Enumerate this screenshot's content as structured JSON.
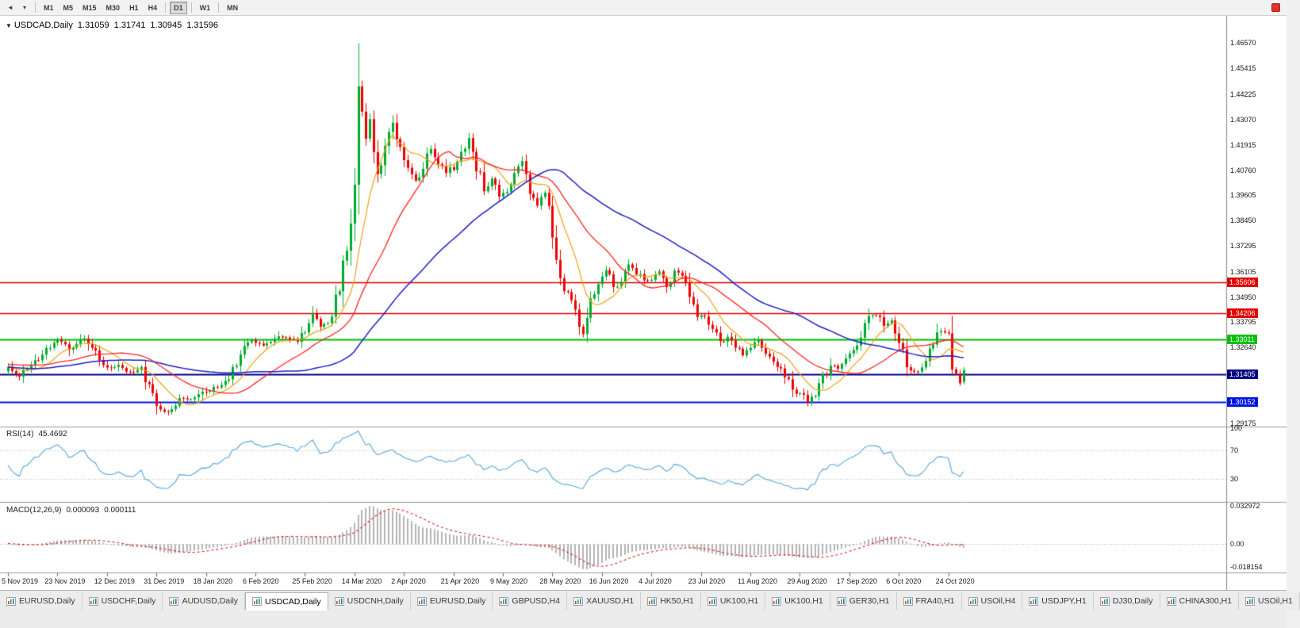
{
  "icons": {
    "title_marker": "▼",
    "dropdown": "▾",
    "scroll_left": "◄"
  },
  "toolbar": {
    "periods": [
      "M1",
      "M5",
      "M15",
      "M30",
      "H1",
      "H4",
      "D1",
      "W1",
      "MN"
    ],
    "active_period": "D1",
    "separators_after": [
      "H4",
      "D1",
      "W1"
    ]
  },
  "chart_header": {
    "symbol": "USDCAD,Daily",
    "open": "1.31059",
    "high": "1.31741",
    "low": "1.30945",
    "close": "1.31596"
  },
  "price_axis_labels": [
    "1.46570",
    "1.45415",
    "1.44225",
    "1.43070",
    "1.41915",
    "1.40760",
    "1.39605",
    "1.38450",
    "1.37295",
    "1.36105",
    "1.34950",
    "1.33795",
    "1.32640",
    "1.29175"
  ],
  "levels": [
    {
      "price": 1.35606,
      "label": "1.35606",
      "color": "#e00000",
      "line_width": 1.4
    },
    {
      "price": 1.34206,
      "label": "1.34206",
      "color": "#e00000",
      "line_width": 1.4
    },
    {
      "price": 1.33011,
      "label": "1.33011",
      "color": "#00c000",
      "line_width": 2
    },
    {
      "price": 1.31405,
      "label": "1.31405",
      "color": "#000085",
      "line_width": 2
    },
    {
      "price": 1.30152,
      "label": "1.30152",
      "color": "#0014e0",
      "line_width": 2
    }
  ],
  "rsi_panel": {
    "name": "RSI(14)",
    "value": "45.4692",
    "axis_labels": [
      "100",
      "70",
      "30"
    ],
    "level_lines": [
      70,
      30
    ]
  },
  "macd_panel": {
    "name": "MACD(12,26,9)",
    "value_main": "0.000093",
    "value_signal": "0.000111",
    "axis_top": "0.032972",
    "axis_zero": "0.00",
    "axis_bottom": "-0.018154"
  },
  "date_labels": [
    "5 Nov 2019",
    "23 Nov 2019",
    "12 Dec 2019",
    "31 Dec 2019",
    "18 Jan 2020",
    "6 Feb 2020",
    "25 Feb 2020",
    "14 Mar 2020",
    "2 Apr 2020",
    "21 Apr 2020",
    "9 May 2020",
    "28 May 2020",
    "16 Jun 2020",
    "4 Jul 2020",
    "23 Jul 2020",
    "11 Aug 2020",
    "29 Aug 2020",
    "17 Sep 2020",
    "6 Oct 2020",
    "24 Oct 2020"
  ],
  "tabs": [
    "EURUSD,Daily",
    "USDCHF,Daily",
    "AUDUSD,Daily",
    "USDCAD,Daily",
    "USDCNH,Daily",
    "EURUSD,Daily",
    "GBPUSD,H4",
    "XAUUSD,H1",
    "HK50,H1",
    "UK100,H1",
    "UK100,H1",
    "GER30,H1",
    "FRA40,H1",
    "USOil,H4",
    "USDJPY,H1",
    "DJ30,Daily",
    "CHINA300,H1",
    "USOil,H1"
  ],
  "active_tab": 3,
  "chart_data": {
    "type": "candlestick",
    "symbol": "USDCAD",
    "timeframe": "D1",
    "candle_count": 252,
    "date_tick_step": 13,
    "price_scale": {
      "top": 1.4775,
      "bottom": 1.2905
    },
    "last_candle": {
      "open": 1.31059,
      "high": 1.31741,
      "low": 1.30945,
      "close": 1.31596
    },
    "colors": {
      "up": "#00ad2e",
      "down": "#f20000",
      "ma_fast": "#eda313",
      "ma_mid": "#ff2222",
      "ma_slow": "#1f1fc8",
      "rsi": "#58a5da",
      "rsi_grid": "#bdbdbd",
      "macd_hist": "#b4b4b4",
      "macd_signal": "#e02020",
      "axis_line": "#8a8a8a",
      "divider": "#9a9a9a"
    },
    "moving_averages": [
      {
        "period": 10,
        "role": "fast"
      },
      {
        "period": 25,
        "role": "mid"
      },
      {
        "period": 55,
        "role": "slow"
      }
    ],
    "indicators": {
      "rsi_period": 14,
      "macd": [
        12,
        26,
        9
      ]
    },
    "close_anchors": [
      [
        0,
        1.317
      ],
      [
        3,
        1.3135
      ],
      [
        6,
        1.318
      ],
      [
        9,
        1.3235
      ],
      [
        13,
        1.3295
      ],
      [
        16,
        1.326
      ],
      [
        20,
        1.33
      ],
      [
        23,
        1.3245
      ],
      [
        26,
        1.317
      ],
      [
        29,
        1.3185
      ],
      [
        32,
        1.315
      ],
      [
        35,
        1.317
      ],
      [
        39,
        1.3
      ],
      [
        42,
        1.2962
      ],
      [
        45,
        1.304
      ],
      [
        48,
        1.3022
      ],
      [
        52,
        1.3065
      ],
      [
        55,
        1.309
      ],
      [
        58,
        1.3115
      ],
      [
        61,
        1.3245
      ],
      [
        64,
        1.329
      ],
      [
        67,
        1.327
      ],
      [
        70,
        1.3305
      ],
      [
        73,
        1.3312
      ],
      [
        76,
        1.329
      ],
      [
        78,
        1.335
      ],
      [
        80,
        1.3422
      ],
      [
        82,
        1.337
      ],
      [
        84,
        1.3362
      ],
      [
        86,
        1.348
      ],
      [
        88,
        1.362
      ],
      [
        90,
        1.386
      ],
      [
        91,
        1.412
      ],
      [
        92,
        1.448
      ],
      [
        93,
        1.435
      ],
      [
        94,
        1.423
      ],
      [
        95,
        1.4285
      ],
      [
        96,
        1.414
      ],
      [
        97,
        1.406
      ],
      [
        99,
        1.418
      ],
      [
        101,
        1.429
      ],
      [
        103,
        1.417
      ],
      [
        105,
        1.41
      ],
      [
        107,
        1.403
      ],
      [
        109,
        1.409
      ],
      [
        111,
        1.417
      ],
      [
        113,
        1.411
      ],
      [
        115,
        1.406
      ],
      [
        117,
        1.4092
      ],
      [
        119,
        1.416
      ],
      [
        121,
        1.422
      ],
      [
        123,
        1.409
      ],
      [
        125,
        1.399
      ],
      [
        127,
        1.403
      ],
      [
        129,
        1.395
      ],
      [
        131,
        1.3992
      ],
      [
        133,
        1.407
      ],
      [
        135,
        1.4112
      ],
      [
        137,
        1.399
      ],
      [
        139,
        1.3912
      ],
      [
        141,
        1.397
      ],
      [
        143,
        1.377
      ],
      [
        145,
        1.3572
      ],
      [
        147,
        1.351
      ],
      [
        149,
        1.3432
      ],
      [
        151,
        1.333
      ],
      [
        153,
        1.348
      ],
      [
        155,
        1.355
      ],
      [
        157,
        1.362
      ],
      [
        159,
        1.3532
      ],
      [
        161,
        1.3572
      ],
      [
        163,
        1.365
      ],
      [
        165,
        1.36
      ],
      [
        167,
        1.3576
      ],
      [
        169,
        1.3565
      ],
      [
        171,
        1.3605
      ],
      [
        173,
        1.3545
      ],
      [
        175,
        1.361
      ],
      [
        177,
        1.3576
      ],
      [
        179,
        1.3515
      ],
      [
        181,
        1.3415
      ],
      [
        183,
        1.34
      ],
      [
        185,
        1.334
      ],
      [
        187,
        1.3292
      ],
      [
        189,
        1.331
      ],
      [
        191,
        1.327
      ],
      [
        193,
        1.3232
      ],
      [
        195,
        1.3262
      ],
      [
        197,
        1.3295
      ],
      [
        199,
        1.3236
      ],
      [
        201,
        1.3185
      ],
      [
        203,
        1.3165
      ],
      [
        205,
        1.3105
      ],
      [
        207,
        1.3065
      ],
      [
        209,
        1.3035
      ],
      [
        210,
        1.3006
      ],
      [
        212,
        1.306
      ],
      [
        214,
        1.313
      ],
      [
        216,
        1.318
      ],
      [
        218,
        1.3165
      ],
      [
        220,
        1.3205
      ],
      [
        222,
        1.325
      ],
      [
        224,
        1.333
      ],
      [
        226,
        1.3395
      ],
      [
        228,
        1.3415
      ],
      [
        230,
        1.336
      ],
      [
        232,
        1.3395
      ],
      [
        234,
        1.33
      ],
      [
        236,
        1.319
      ],
      [
        238,
        1.3146
      ],
      [
        240,
        1.3165
      ],
      [
        242,
        1.3255
      ],
      [
        244,
        1.3315
      ],
      [
        245,
        1.334
      ],
      [
        247,
        1.3295
      ],
      [
        248,
        1.3185
      ],
      [
        249,
        1.3125
      ],
      [
        250,
        1.3106
      ],
      [
        251,
        1.31596
      ]
    ],
    "overrides": [
      {
        "i": 42,
        "low": 1.2952
      },
      {
        "i": 92,
        "high": 1.4657
      },
      {
        "i": 210,
        "low": 1.2994
      },
      {
        "i": 251,
        "open": 1.31059,
        "high": 1.31741,
        "low": 1.30945,
        "close": 1.31596
      }
    ]
  }
}
